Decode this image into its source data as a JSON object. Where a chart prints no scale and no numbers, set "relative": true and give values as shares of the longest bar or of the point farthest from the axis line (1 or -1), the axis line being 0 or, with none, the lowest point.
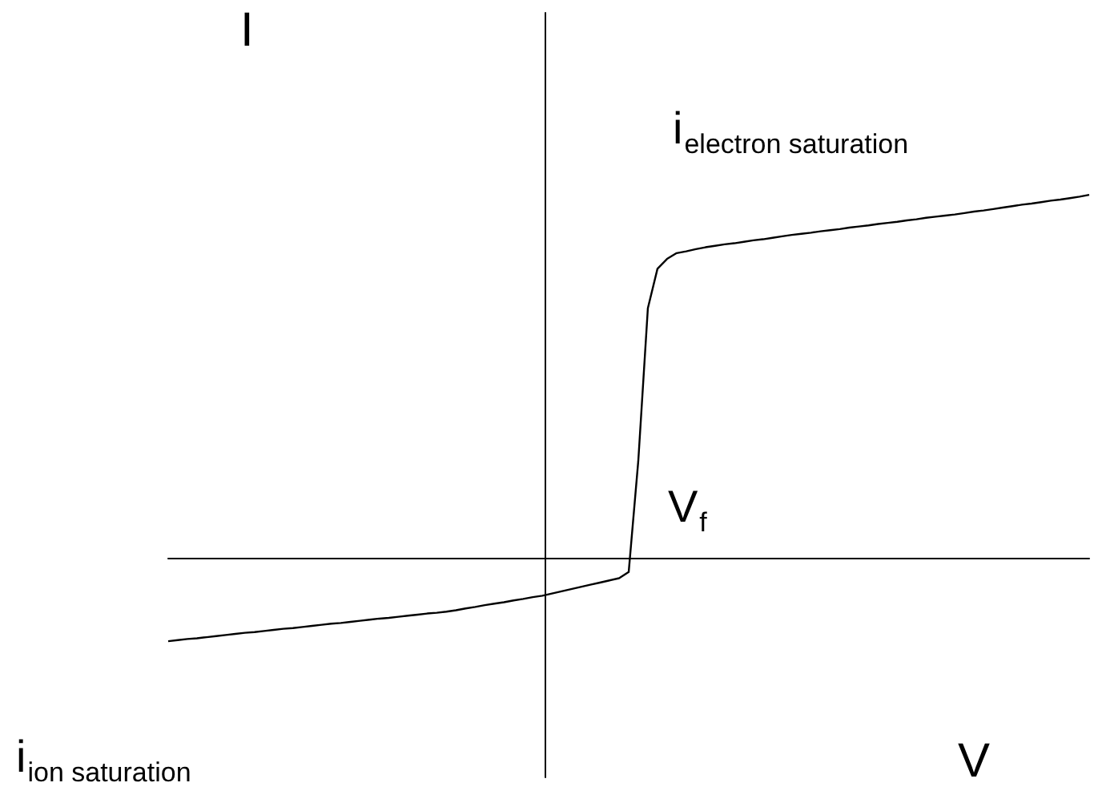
{
  "chart_data": {
    "type": "line",
    "relative": true,
    "xlabel": "V",
    "ylabel": "I",
    "color": "#000000",
    "categories": [
      null,
      null,
      null,
      null,
      null,
      null,
      null,
      null,
      null,
      null,
      null,
      null,
      null,
      null,
      null,
      null,
      null,
      null,
      null,
      null,
      null,
      null,
      null,
      null,
      null,
      null,
      null,
      null,
      null,
      null,
      null,
      null,
      null,
      null,
      null,
      null,
      null,
      null,
      null,
      null,
      null,
      null,
      null,
      null,
      null,
      null,
      null,
      null,
      null,
      null,
      null,
      null,
      null,
      null,
      null,
      null,
      null,
      null,
      null,
      null,
      null,
      null,
      null,
      null,
      null,
      null,
      null,
      null,
      null,
      null,
      null,
      null,
      null,
      null,
      null,
      null,
      null,
      null,
      null,
      null,
      null,
      null,
      null,
      null,
      null,
      null,
      null,
      null,
      null,
      null,
      null,
      null,
      null,
      null,
      null,
      null,
      null
    ],
    "values": [
      -0.226,
      -0.223,
      -0.22,
      -0.218,
      -0.215,
      -0.212,
      -0.209,
      -0.206,
      -0.203,
      -0.201,
      -0.198,
      -0.195,
      -0.192,
      -0.19,
      -0.187,
      -0.184,
      -0.181,
      -0.178,
      -0.176,
      -0.173,
      -0.17,
      -0.167,
      -0.164,
      -0.162,
      -0.159,
      -0.156,
      -0.153,
      -0.15,
      -0.148,
      -0.145,
      -0.141,
      -0.136,
      -0.132,
      -0.127,
      -0.123,
      -0.119,
      -0.114,
      -0.11,
      -0.105,
      -0.101,
      -0.095,
      -0.089,
      -0.083,
      -0.077,
      -0.071,
      -0.065,
      -0.059,
      -0.053,
      -0.036,
      0.269,
      0.689,
      0.797,
      0.824,
      0.84,
      0.845,
      0.851,
      0.856,
      0.86,
      0.864,
      0.867,
      0.871,
      0.875,
      0.878,
      0.882,
      0.886,
      0.89,
      0.893,
      0.896,
      0.9,
      0.903,
      0.906,
      0.91,
      0.913,
      0.916,
      0.92,
      0.923,
      0.926,
      0.93,
      0.933,
      0.937,
      0.94,
      0.943,
      0.946,
      0.95,
      0.954,
      0.957,
      0.961,
      0.965,
      0.969,
      0.973,
      0.976,
      0.98,
      0.984,
      0.987,
      0.991,
      0.995,
      1
    ],
    "annotations": [
      "i$_{electron saturation}$",
      "V$_{f}$",
      "i$_{ion saturation}$"
    ]
  }
}
